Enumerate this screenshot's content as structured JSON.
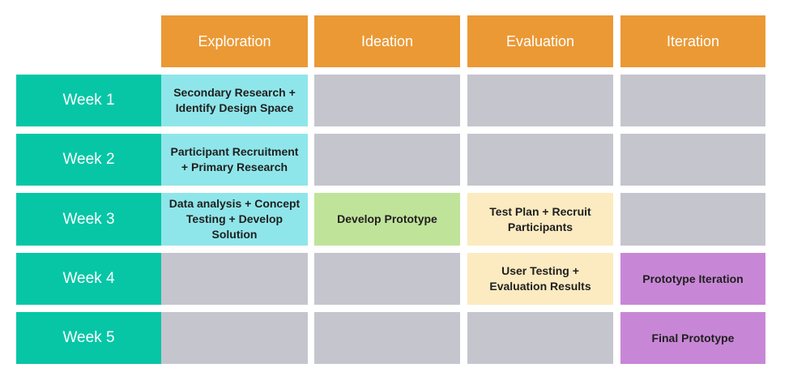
{
  "phases": [
    "Exploration",
    "Ideation",
    "Evaluation",
    "Iteration"
  ],
  "weeks": [
    "Week 1",
    "Week 2",
    "Week 3",
    "Week 4",
    "Week 5"
  ],
  "tasks": {
    "exploration": {
      "week1": "Secondary Research + Identify Design Space",
      "week2": "Participant Recruitment + Primary Research",
      "week3": "Data analysis + Concept Testing + Develop Solution"
    },
    "ideation": {
      "week3": "Develop Prototype"
    },
    "evaluation": {
      "week3": "Test Plan + Recruit Participants",
      "week4": "User Testing + Evaluation Results"
    },
    "iteration": {
      "week4": "Prototype Iteration",
      "week5": "Final Prototype"
    }
  },
  "colors": {
    "header": "#eb9935",
    "week": "#06c6a6",
    "empty": "#c5c5ce",
    "exploration": "#8fe6ea",
    "ideation": "#c0e39a",
    "evaluation": "#fcebc0",
    "iteration": "#c887d6"
  }
}
